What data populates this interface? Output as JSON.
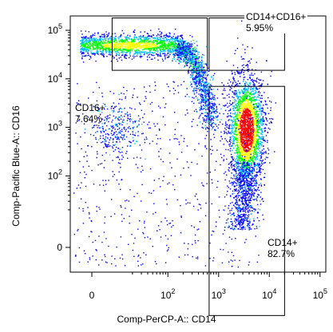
{
  "chart_data": {
    "type": "scatter",
    "subtype": "flow-cytometry-density-dot-plot",
    "xlabel": "Comp-PerCP-A:: CD14",
    "ylabel": "Comp-Pacific Blue-A:: CD16",
    "x_scale": "biexponential",
    "y_scale": "biexponential",
    "x_ticks": [
      {
        "value": 0,
        "label": "0"
      },
      {
        "value": 100,
        "label": "10^2"
      },
      {
        "value": 1000,
        "label": "10^3"
      },
      {
        "value": 10000,
        "label": "10^4"
      },
      {
        "value": 100000,
        "label": "10^5"
      }
    ],
    "y_ticks": [
      {
        "value": 0,
        "label": "0"
      },
      {
        "value": 100,
        "label": "10^2"
      },
      {
        "value": 1000,
        "label": "10^3"
      },
      {
        "value": 10000,
        "label": "10^4"
      },
      {
        "value": 100000,
        "label": "10^5"
      }
    ],
    "grid": false,
    "color_scale": [
      "#0000ff",
      "#00bfff",
      "#00ff00",
      "#ffff00",
      "#ff0000"
    ],
    "populations": [
      {
        "center_x": 3500,
        "center_y": 900,
        "spread": "large",
        "density": "highest"
      },
      {
        "center_x": 300,
        "center_y": 50000,
        "spread": "horizontal band",
        "density": "medium"
      },
      {
        "center_x": 2500,
        "center_y": 30000,
        "spread": "diagonal transition",
        "density": "medium"
      },
      {
        "center_x": 10,
        "center_y": 900,
        "spread": "small",
        "density": "low"
      }
    ],
    "gates": [
      {
        "name": "CD16+",
        "label": "CD16+",
        "percent": "7.64%",
        "x_range": [
          8,
          600
        ],
        "y_range": [
          15000,
          180000
        ]
      },
      {
        "name": "CD14+CD16+",
        "label": "CD14+CD16+",
        "percent": "5.95%",
        "x_range": [
          650,
          20000
        ],
        "y_range": [
          15000,
          180000
        ]
      },
      {
        "name": "CD14+",
        "label": "CD14+",
        "percent": "82.7%",
        "x_range": [
          650,
          20000
        ],
        "y_range": [
          -80,
          7000
        ]
      }
    ]
  }
}
